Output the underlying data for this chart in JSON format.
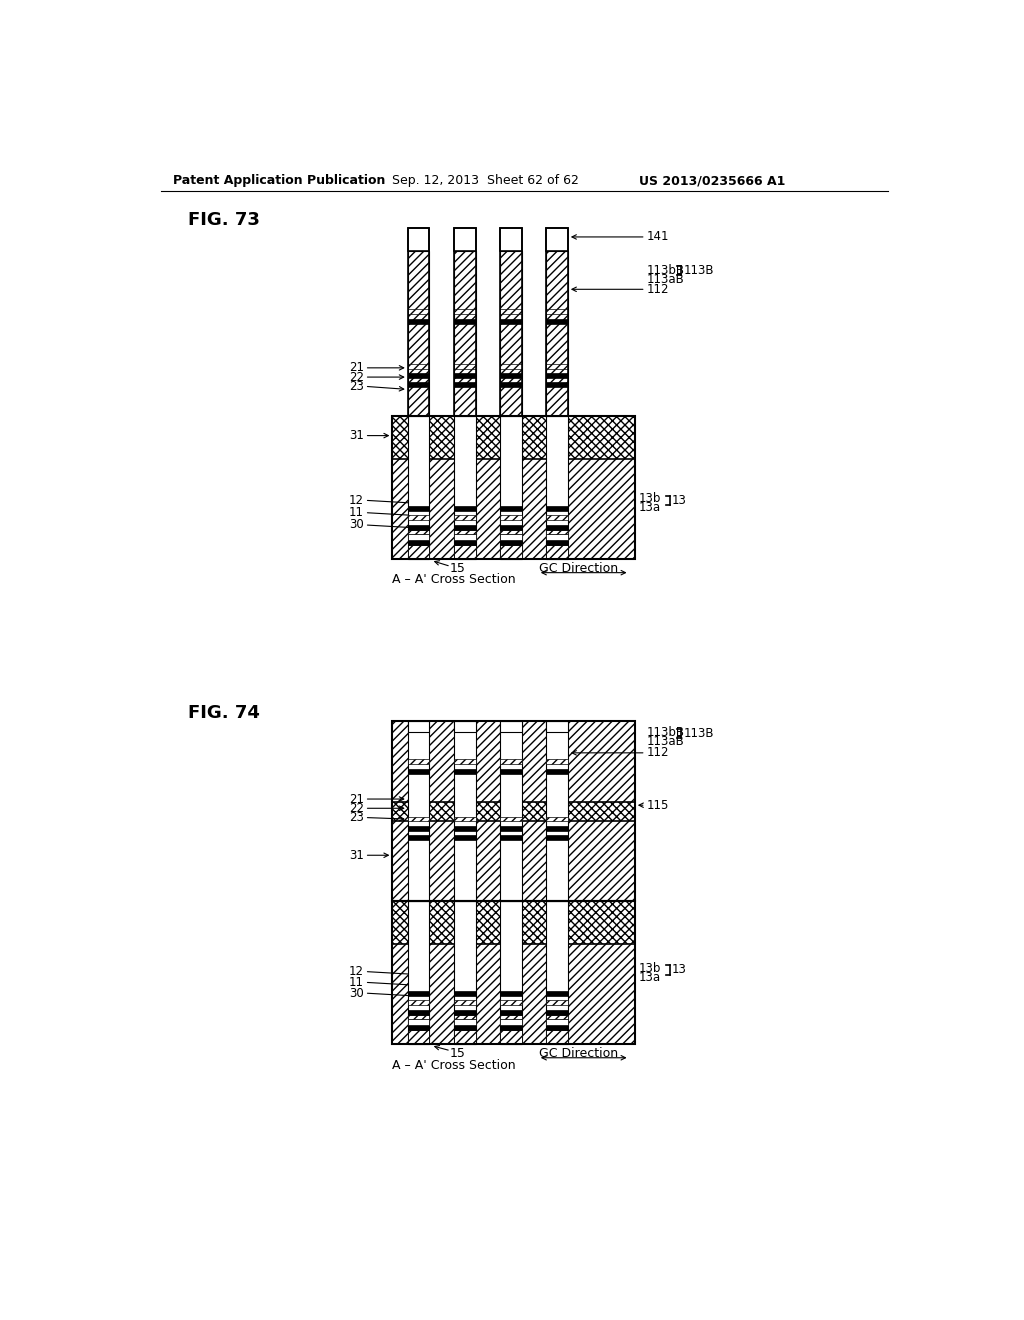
{
  "header_left": "Patent Application Publication",
  "header_mid": "Sep. 12, 2013  Sheet 62 of 62",
  "header_right": "US 2013/0235666 A1",
  "fig73_label": "FIG. 73",
  "fig74_label": "FIG. 74",
  "background_color": "#ffffff"
}
